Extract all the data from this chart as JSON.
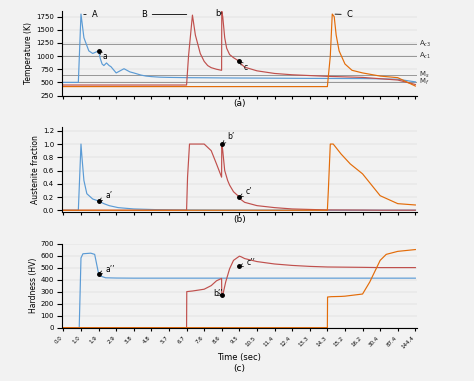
{
  "color_blue": "#5b9bd5",
  "color_red": "#c0504d",
  "color_orange": "#e36c09",
  "color_hline": "#808080",
  "bg_color": "#f2f2f2",
  "Ac3": 1230,
  "Ac1": 1000,
  "Ms": 650,
  "Mf": 500,
  "ylim_a": [
    250,
    1850
  ],
  "ylim_b": [
    -0.02,
    1.25
  ],
  "ylim_c": [
    0,
    700
  ],
  "xticks": [
    0.0,
    1.0,
    1.9,
    2.9,
    3.8,
    4.8,
    5.7,
    6.7,
    7.6,
    8.6,
    9.5,
    10.5,
    11.4,
    12.4,
    13.3,
    14.3,
    15.2,
    16.2,
    30.4,
    87.4,
    144.4
  ],
  "xlabel": "Time (sec)",
  "ylabel_a": "Temperature (K)",
  "ylabel_b": "Austenite fraction",
  "ylabel_c": "Hardness (HV)",
  "yticks_a": [
    250,
    500,
    750,
    1000,
    1250,
    1500,
    1750
  ],
  "yticks_b": [
    0.0,
    0.2,
    0.4,
    0.6,
    0.8,
    1.0,
    1.2
  ],
  "yticks_c": [
    0,
    100,
    200,
    300,
    400,
    500,
    600,
    700
  ],
  "blue_temp": [
    [
      0.0,
      500
    ],
    [
      0.85,
      500
    ],
    [
      1.0,
      1800
    ],
    [
      1.15,
      1350
    ],
    [
      1.4,
      1100
    ],
    [
      1.6,
      1050
    ],
    [
      1.9,
      1100
    ],
    [
      2.0,
      950
    ],
    [
      2.1,
      850
    ],
    [
      2.2,
      820
    ],
    [
      2.35,
      870
    ],
    [
      2.5,
      820
    ],
    [
      2.6,
      800
    ],
    [
      2.7,
      760
    ],
    [
      2.9,
      680
    ],
    [
      3.0,
      700
    ],
    [
      3.15,
      730
    ],
    [
      3.3,
      760
    ],
    [
      3.45,
      730
    ],
    [
      3.6,
      700
    ],
    [
      3.8,
      680
    ],
    [
      4.0,
      660
    ],
    [
      4.2,
      640
    ],
    [
      4.5,
      620
    ],
    [
      4.8,
      610
    ],
    [
      5.2,
      600
    ],
    [
      5.7,
      595
    ],
    [
      6.7,
      590
    ],
    [
      7.6,
      588
    ],
    [
      8.6,
      585
    ],
    [
      9.5,
      583
    ],
    [
      10.5,
      582
    ],
    [
      11.4,
      580
    ],
    [
      12.4,
      578
    ],
    [
      13.3,
      576
    ],
    [
      14.3,
      575
    ],
    [
      15.2,
      574
    ],
    [
      16.2,
      573
    ],
    [
      30.4,
      568
    ],
    [
      87.4,
      560
    ],
    [
      144.4,
      510
    ]
  ],
  "red_temp": [
    [
      0.0,
      450
    ],
    [
      6.69,
      450
    ],
    [
      6.7,
      450
    ],
    [
      6.8,
      1000
    ],
    [
      7.0,
      1780
    ],
    [
      7.15,
      1400
    ],
    [
      7.4,
      1050
    ],
    [
      7.6,
      900
    ],
    [
      7.8,
      820
    ],
    [
      8.0,
      780
    ],
    [
      8.3,
      750
    ],
    [
      8.59,
      730
    ],
    [
      8.6,
      1850
    ],
    [
      8.65,
      1750
    ],
    [
      8.75,
      1350
    ],
    [
      8.85,
      1150
    ],
    [
      9.0,
      1030
    ],
    [
      9.2,
      970
    ],
    [
      9.5,
      900
    ],
    [
      9.6,
      850
    ],
    [
      9.8,
      790
    ],
    [
      10.5,
      720
    ],
    [
      11.4,
      670
    ],
    [
      12.4,
      645
    ],
    [
      13.3,
      630
    ],
    [
      14.3,
      615
    ],
    [
      15.2,
      605
    ],
    [
      16.2,
      595
    ],
    [
      30.4,
      570
    ],
    [
      87.4,
      545
    ],
    [
      144.4,
      460
    ]
  ],
  "orange_temp": [
    [
      0.0,
      420
    ],
    [
      14.29,
      420
    ],
    [
      14.3,
      420
    ],
    [
      14.45,
      1000
    ],
    [
      14.55,
      1800
    ],
    [
      14.65,
      1750
    ],
    [
      14.75,
      1400
    ],
    [
      14.9,
      1100
    ],
    [
      15.2,
      850
    ],
    [
      15.6,
      730
    ],
    [
      16.2,
      680
    ],
    [
      30.4,
      620
    ],
    [
      87.4,
      590
    ],
    [
      144.4,
      430
    ]
  ],
  "blue_aust": [
    [
      0.0,
      0.0
    ],
    [
      0.85,
      0.0
    ],
    [
      1.0,
      1.0
    ],
    [
      1.05,
      0.8
    ],
    [
      1.15,
      0.45
    ],
    [
      1.3,
      0.25
    ],
    [
      1.6,
      0.17
    ],
    [
      1.9,
      0.14
    ],
    [
      2.2,
      0.1
    ],
    [
      2.5,
      0.07
    ],
    [
      3.0,
      0.04
    ],
    [
      3.8,
      0.02
    ],
    [
      5.0,
      0.01
    ],
    [
      6.7,
      0.005
    ],
    [
      8.6,
      0.003
    ],
    [
      10.5,
      0.002
    ],
    [
      16.2,
      0.001
    ],
    [
      144.4,
      0.001
    ]
  ],
  "red_aust": [
    [
      0.0,
      0.0
    ],
    [
      6.69,
      0.0
    ],
    [
      6.7,
      0.0
    ],
    [
      6.75,
      0.5
    ],
    [
      6.85,
      1.0
    ],
    [
      7.0,
      1.0
    ],
    [
      7.6,
      1.0
    ],
    [
      8.0,
      0.9
    ],
    [
      8.3,
      0.7
    ],
    [
      8.59,
      0.5
    ],
    [
      8.6,
      1.0
    ],
    [
      8.61,
      1.0
    ],
    [
      8.65,
      0.9
    ],
    [
      8.75,
      0.6
    ],
    [
      8.9,
      0.45
    ],
    [
      9.0,
      0.38
    ],
    [
      9.2,
      0.28
    ],
    [
      9.5,
      0.2
    ],
    [
      9.6,
      0.16
    ],
    [
      9.8,
      0.12
    ],
    [
      10.5,
      0.07
    ],
    [
      11.4,
      0.04
    ],
    [
      12.4,
      0.02
    ],
    [
      14.3,
      0.005
    ],
    [
      16.2,
      0.003
    ],
    [
      30.4,
      0.001
    ],
    [
      144.4,
      0.001
    ]
  ],
  "orange_aust": [
    [
      0.0,
      0.0
    ],
    [
      14.29,
      0.0
    ],
    [
      14.3,
      0.0
    ],
    [
      14.35,
      0.3
    ],
    [
      14.45,
      1.0
    ],
    [
      14.5,
      1.0
    ],
    [
      14.6,
      1.0
    ],
    [
      15.0,
      0.85
    ],
    [
      15.5,
      0.7
    ],
    [
      16.2,
      0.55
    ],
    [
      30.4,
      0.22
    ],
    [
      87.4,
      0.1
    ],
    [
      144.4,
      0.08
    ]
  ],
  "blue_hard": [
    [
      0.0,
      0
    ],
    [
      0.88,
      0
    ],
    [
      0.9,
      0
    ],
    [
      1.0,
      580
    ],
    [
      1.1,
      615
    ],
    [
      1.5,
      620
    ],
    [
      1.7,
      610
    ],
    [
      1.9,
      450
    ],
    [
      2.0,
      430
    ],
    [
      2.3,
      415
    ],
    [
      2.9,
      413
    ],
    [
      3.8,
      412
    ],
    [
      6.7,
      412
    ],
    [
      8.6,
      412
    ],
    [
      16.2,
      412
    ],
    [
      30.4,
      412
    ],
    [
      87.4,
      412
    ],
    [
      144.4,
      412
    ]
  ],
  "red_hard": [
    [
      0.0,
      0
    ],
    [
      6.69,
      0
    ],
    [
      6.7,
      0
    ],
    [
      6.71,
      300
    ],
    [
      7.0,
      305
    ],
    [
      7.6,
      320
    ],
    [
      8.0,
      350
    ],
    [
      8.3,
      390
    ],
    [
      8.59,
      410
    ],
    [
      8.6,
      270
    ],
    [
      8.61,
      265
    ],
    [
      8.65,
      270
    ],
    [
      8.8,
      380
    ],
    [
      9.0,
      490
    ],
    [
      9.2,
      560
    ],
    [
      9.5,
      595
    ],
    [
      9.6,
      590
    ],
    [
      9.8,
      575
    ],
    [
      10.5,
      550
    ],
    [
      11.4,
      530
    ],
    [
      12.4,
      518
    ],
    [
      13.3,
      510
    ],
    [
      14.3,
      505
    ],
    [
      16.2,
      502
    ],
    [
      30.4,
      500
    ],
    [
      87.4,
      500
    ],
    [
      144.4,
      500
    ]
  ],
  "orange_hard": [
    [
      0.0,
      0
    ],
    [
      14.29,
      0
    ],
    [
      14.3,
      0
    ],
    [
      14.31,
      255
    ],
    [
      14.5,
      258
    ],
    [
      15.0,
      260
    ],
    [
      15.2,
      262
    ],
    [
      16.2,
      280
    ],
    [
      22.0,
      380
    ],
    [
      30.4,
      560
    ],
    [
      50.0,
      610
    ],
    [
      87.4,
      635
    ],
    [
      144.4,
      650
    ]
  ]
}
